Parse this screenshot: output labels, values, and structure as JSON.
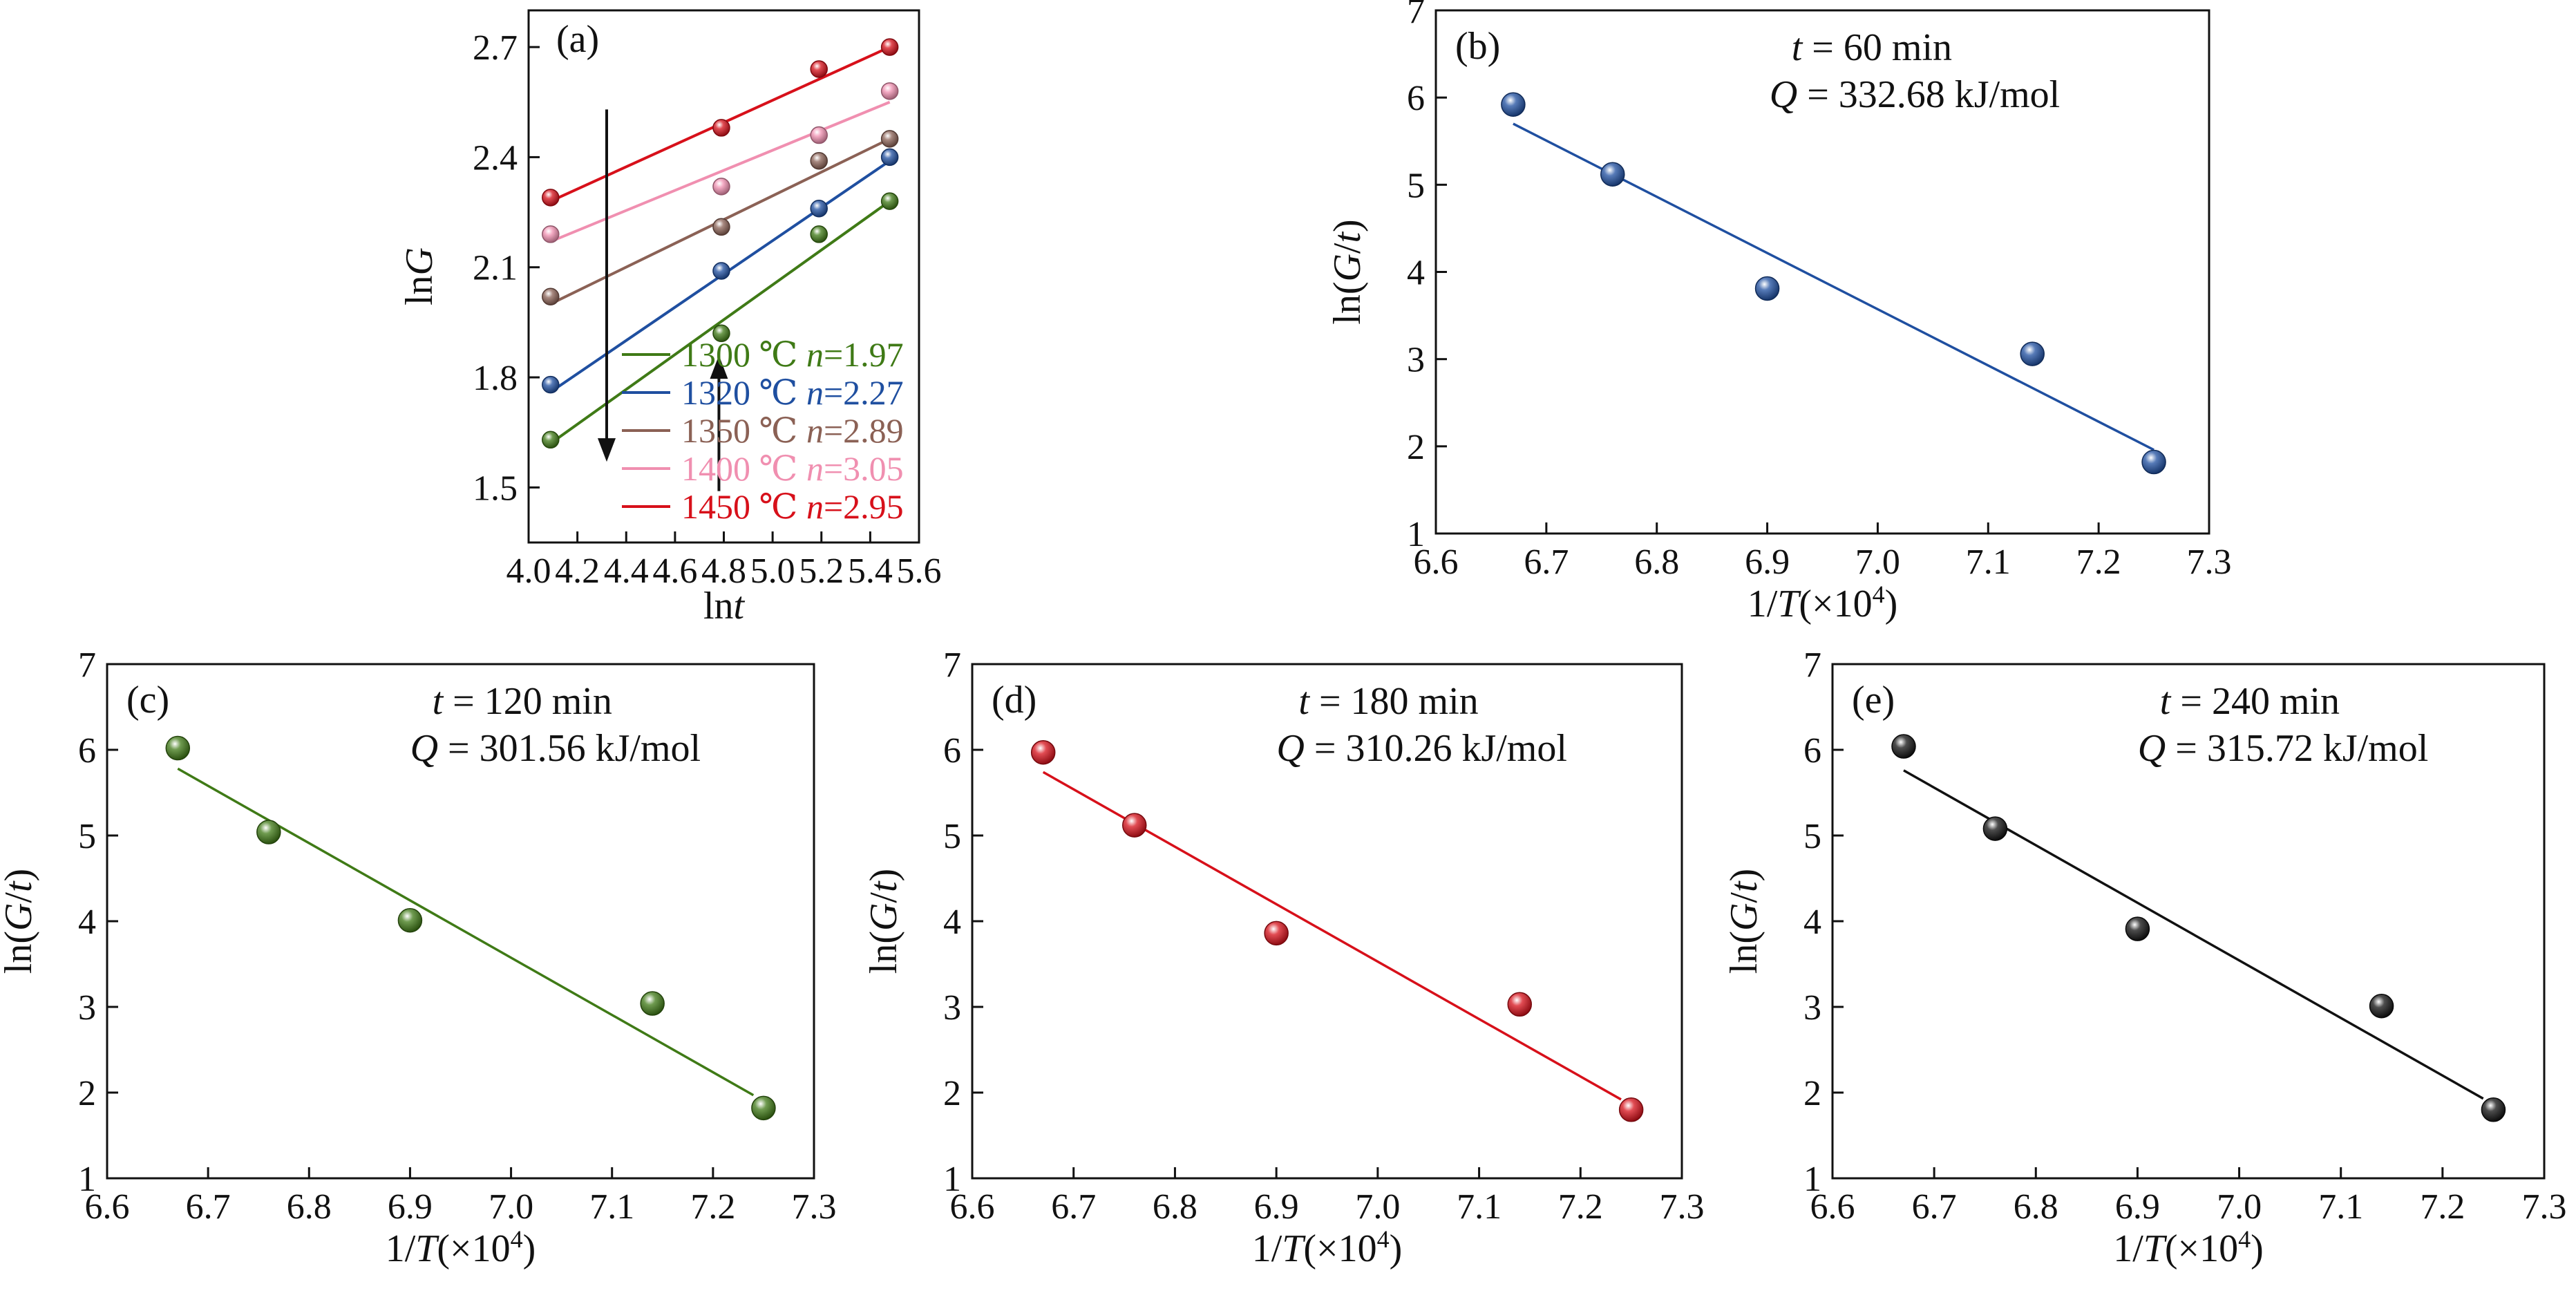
{
  "chart_data": [
    {
      "id": "a",
      "type": "scatter",
      "panel_label": "(a)",
      "xlabel": "lnt",
      "ylabel": "lnG",
      "xlim": [
        4.0,
        5.6
      ],
      "ylim": [
        1.35,
        2.8
      ],
      "xticks": [
        4.0,
        4.2,
        4.4,
        4.6,
        4.8,
        5.0,
        5.2,
        5.4,
        5.6
      ],
      "xtick_labels": [
        "4.0",
        "4.2",
        "4.4",
        "4.6",
        "4.8",
        "5.0",
        "5.2",
        "5.4",
        "5.6"
      ],
      "yticks": [
        1.5,
        1.8,
        2.1,
        2.4,
        2.7
      ],
      "ytick_labels": [
        "1.5",
        "1.8",
        "2.1",
        "2.4",
        "2.7"
      ],
      "grid": false,
      "legend_position": "bottom-right",
      "x": [
        4.09,
        4.79,
        5.19,
        5.48
      ],
      "series": [
        {
          "temp": "1300 ℃",
          "n_label": "n",
          "n_value": "=1.97",
          "color": "#3f7a16",
          "values": [
            1.63,
            1.92,
            2.19,
            2.28
          ],
          "fit": [
            1.62,
            2.28
          ]
        },
        {
          "temp": "1320 ℃",
          "n_label": "n",
          "n_value": "=2.27",
          "color": "#1f4fa0",
          "values": [
            1.78,
            2.09,
            2.26,
            2.4
          ],
          "fit": [
            1.76,
            2.39
          ]
        },
        {
          "temp": "1350 ℃",
          "n_label": "n",
          "n_value": "=2.89",
          "color": "#8b6155",
          "values": [
            2.02,
            2.21,
            2.39,
            2.45
          ],
          "fit": [
            2.0,
            2.45
          ]
        },
        {
          "temp": "1400 ℃",
          "n_label": "n",
          "n_value": "=3.05",
          "color": "#f08fb0",
          "values": [
            2.19,
            2.32,
            2.46,
            2.58
          ],
          "fit": [
            2.17,
            2.55
          ]
        },
        {
          "temp": "1450 ℃",
          "n_label": "n",
          "n_value": "=2.95",
          "color": "#d7101a",
          "values": [
            2.29,
            2.48,
            2.64,
            2.7
          ],
          "fit": [
            2.28,
            2.7
          ]
        }
      ],
      "arrows": [
        {
          "x": 4.32,
          "from": 2.53,
          "to": 1.57,
          "direction": "down"
        },
        {
          "x": 4.78,
          "from": 1.49,
          "to": 1.86,
          "direction": "up"
        }
      ]
    },
    {
      "id": "b",
      "type": "scatter",
      "panel_label": "(b)",
      "t_label": "t",
      "t_value": " = 60 min",
      "q_label": "Q",
      "q_value": " = 332.68 kJ/mol",
      "xlabel": "1/T(×10⁴)",
      "ylabel": "ln(G/t)",
      "xlim": [
        6.6,
        7.3
      ],
      "ylim": [
        1,
        7
      ],
      "color": "#1f4fa0",
      "x": [
        6.67,
        6.76,
        6.9,
        7.14,
        7.25
      ],
      "values": [
        5.92,
        5.12,
        3.81,
        3.06,
        1.82
      ],
      "fit": {
        "x": [
          6.67,
          7.25
        ],
        "y": [
          5.7,
          1.96
        ]
      }
    },
    {
      "id": "c",
      "type": "scatter",
      "panel_label": "(c)",
      "t_label": "t",
      "t_value": " = 120 min",
      "q_label": "Q",
      "q_value": " = 301.56 kJ/mol",
      "xlabel": "1/T(×10⁴)",
      "ylabel": "ln(G/t)",
      "xlim": [
        6.6,
        7.3
      ],
      "ylim": [
        1,
        7
      ],
      "color": "#3f7a16",
      "x": [
        6.67,
        6.76,
        6.9,
        7.14,
        7.25
      ],
      "values": [
        6.02,
        5.04,
        4.01,
        3.04,
        1.82
      ],
      "fit": {
        "x": [
          6.67,
          7.24
        ],
        "y": [
          5.78,
          1.97
        ]
      }
    },
    {
      "id": "d",
      "type": "scatter",
      "panel_label": "(d)",
      "t_label": "t",
      "t_value": " = 180 min",
      "q_label": "Q",
      "q_value": " = 310.26 kJ/mol",
      "xlabel": "1/T(×10⁴)",
      "ylabel": "ln(G/t)",
      "xlim": [
        6.6,
        7.3
      ],
      "ylim": [
        1,
        7
      ],
      "color": "#d7101a",
      "x": [
        6.67,
        6.76,
        6.9,
        7.14,
        7.25
      ],
      "values": [
        5.97,
        5.12,
        3.86,
        3.03,
        1.8
      ],
      "fit": {
        "x": [
          6.67,
          7.24
        ],
        "y": [
          5.74,
          1.92
        ]
      }
    },
    {
      "id": "e",
      "type": "scatter",
      "panel_label": "(e)",
      "t_label": "t",
      "t_value": " = 240 min",
      "q_label": "Q",
      "q_value": " = 315.72 kJ/mol",
      "xlabel": "1/T(×10⁴)",
      "ylabel": "ln(G/t)",
      "xlim": [
        6.6,
        7.3
      ],
      "ylim": [
        1,
        7
      ],
      "color": "#111111",
      "x": [
        6.67,
        6.76,
        6.9,
        7.14,
        7.25
      ],
      "values": [
        6.04,
        5.08,
        3.91,
        3.01,
        1.8
      ],
      "fit": {
        "x": [
          6.67,
          7.24
        ],
        "y": [
          5.76,
          1.93
        ]
      }
    }
  ],
  "arrhenius_axes": {
    "xticks": [
      6.6,
      6.7,
      6.8,
      6.9,
      7.0,
      7.1,
      7.2,
      7.3
    ],
    "xtick_labels": [
      "6.6",
      "6.7",
      "6.8",
      "6.9",
      "7.0",
      "7.1",
      "7.2",
      "7.3"
    ],
    "yticks": [
      1,
      2,
      3,
      4,
      5,
      6,
      7
    ],
    "ytick_labels": [
      "1",
      "2",
      "3",
      "4",
      "5",
      "6",
      "7"
    ]
  }
}
